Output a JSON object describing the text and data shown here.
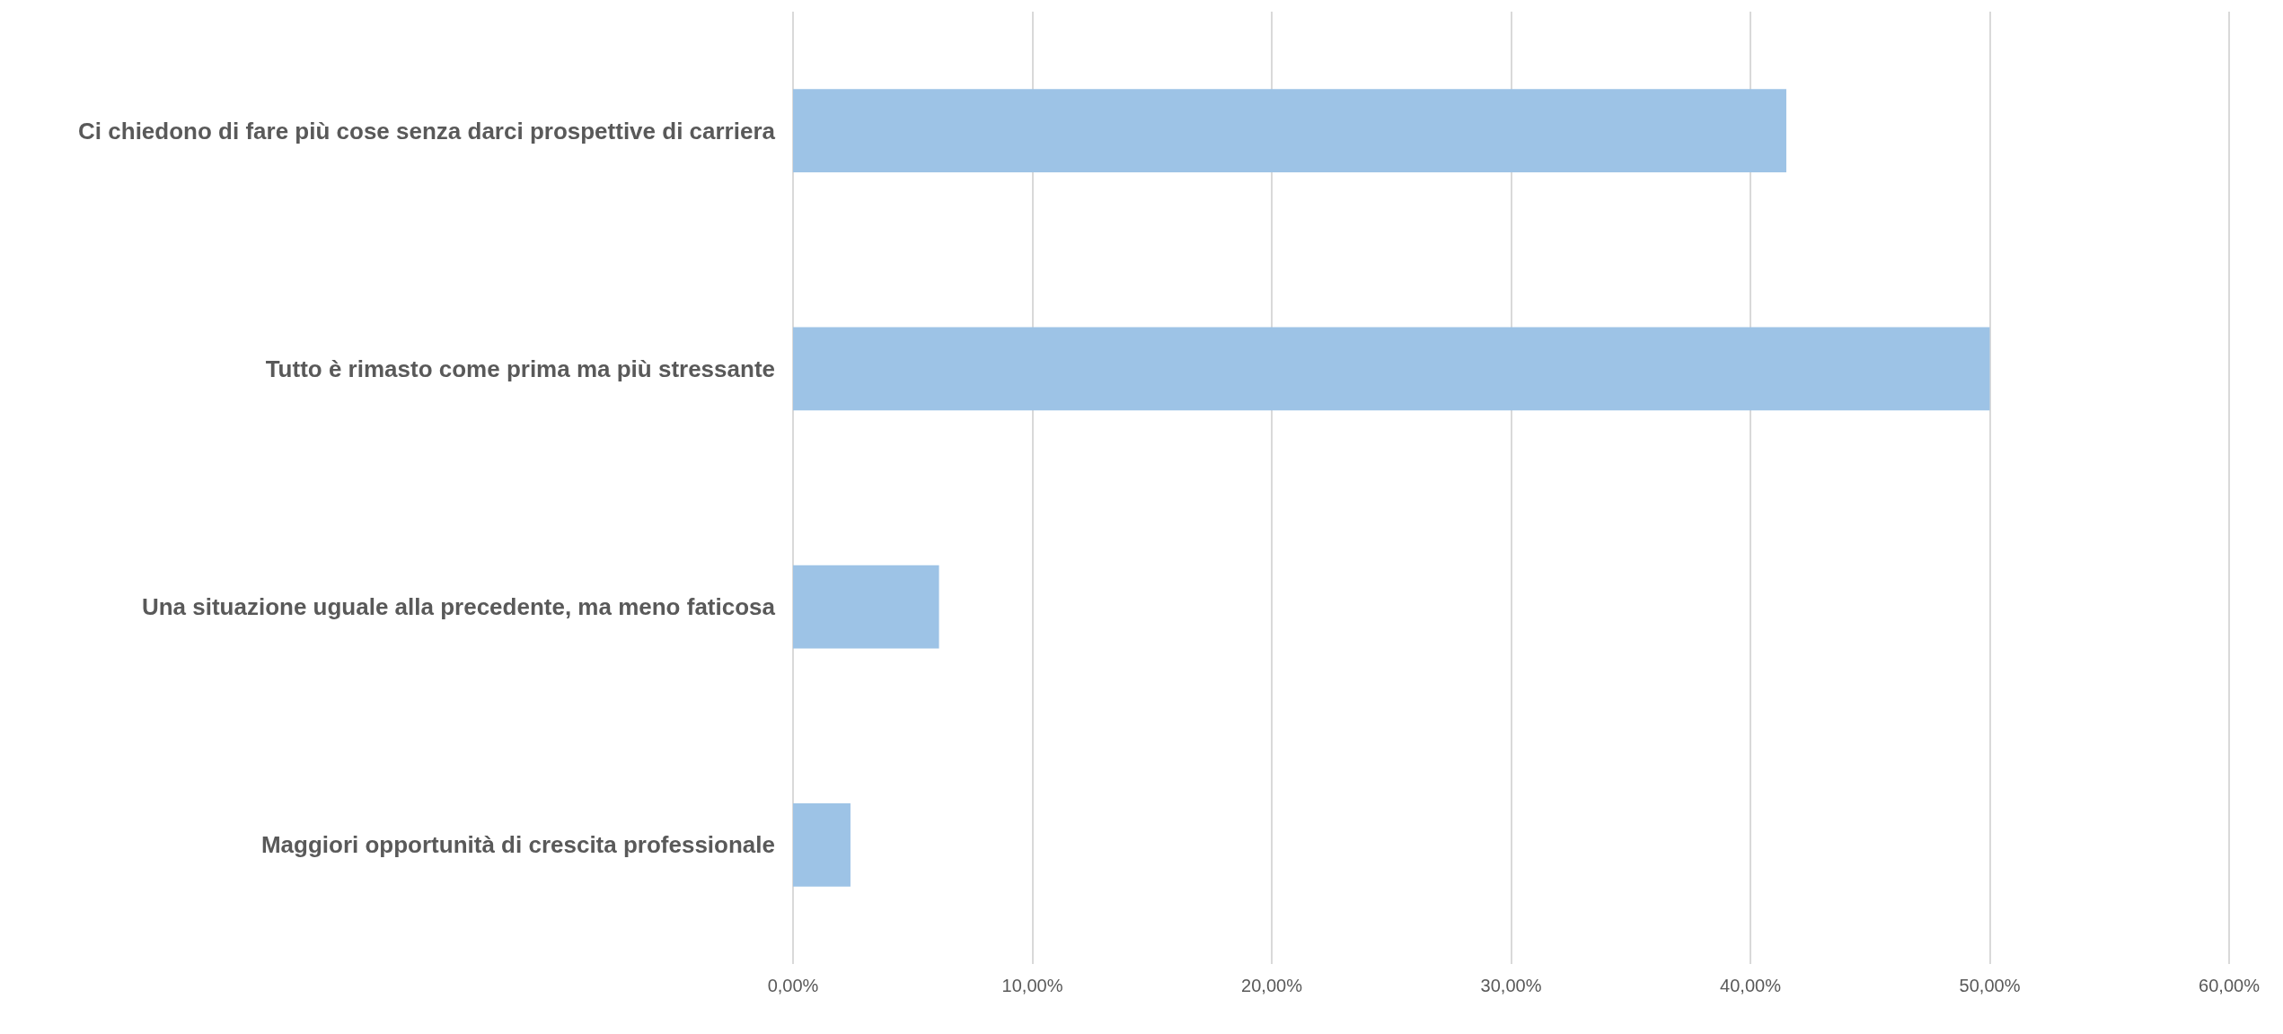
{
  "chart_data": {
    "type": "bar",
    "orientation": "horizontal",
    "categories": [
      "Ci chiedono di fare più cose senza darci prospettive di carriera",
      "Tutto è rimasto come prima ma più stressante",
      "Una situazione uguale alla precedente, ma meno faticosa",
      "Maggiori opportunità di crescita professionale"
    ],
    "values": [
      41.5,
      50.0,
      6.1,
      2.4
    ],
    "color": "#9dc3e6",
    "xlim": [
      0,
      60
    ],
    "xticks": [
      {
        "value": 0,
        "label": "0,00%"
      },
      {
        "value": 10,
        "label": "10,00%"
      },
      {
        "value": 20,
        "label": "20,00%"
      },
      {
        "value": 30,
        "label": "30,00%"
      },
      {
        "value": 40,
        "label": "40,00%"
      },
      {
        "value": 50,
        "label": "50,00%"
      },
      {
        "value": 60,
        "label": "60,00%"
      }
    ],
    "grid": "x"
  }
}
